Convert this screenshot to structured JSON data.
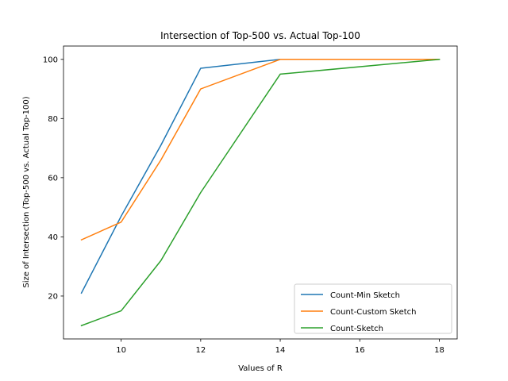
{
  "chart_data": {
    "type": "line",
    "title": "Intersection of Top-500 vs. Actual Top-100",
    "xlabel": "Values of R",
    "ylabel": "Size of Intersection (Top-500 vs. Actual Top-100)",
    "x": [
      9,
      10,
      11,
      12,
      14,
      18
    ],
    "xlim": [
      8.55,
      18.45
    ],
    "ylim": [
      5.5,
      104.5
    ],
    "xticks": [
      10,
      12,
      14,
      16,
      18
    ],
    "yticks": [
      20,
      40,
      60,
      80,
      100
    ],
    "grid": false,
    "legend_position": "lower-right",
    "series": [
      {
        "name": "Count-Min Sketch",
        "color": "#1f77b4",
        "values": [
          21,
          47,
          71,
          97,
          100,
          100
        ]
      },
      {
        "name": "Count-Custom Sketch",
        "color": "#ff7f0e",
        "values": [
          39,
          45,
          66,
          90,
          100,
          100
        ]
      },
      {
        "name": "Count-Sketch",
        "color": "#2ca02c",
        "values": [
          10,
          15,
          32,
          55,
          95,
          100
        ]
      }
    ]
  }
}
